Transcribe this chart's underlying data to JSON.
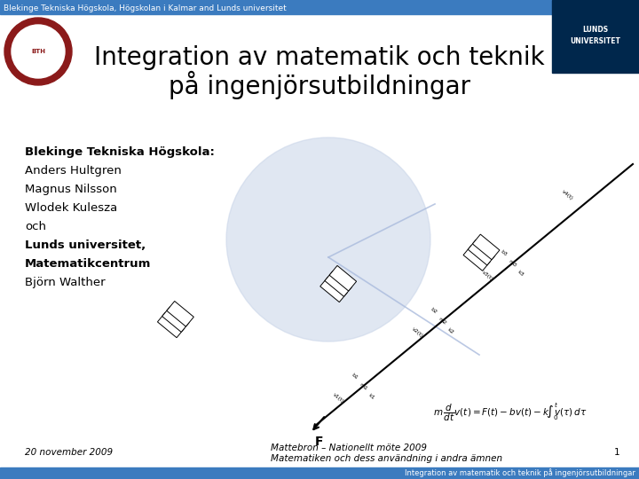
{
  "title_line1": "Integration av matematik och teknik",
  "title_line2": "på ingenjörsutbildningar",
  "header_text": "Blekinge Tekniska Högskola, Högskolan i Kalmar and Lunds universitet",
  "footer_text": "Integration av matematik och teknik på ingenjörsutbildningar",
  "header_bg": "#3b7bbf",
  "footer_bg": "#3b7bbf",
  "slide_bg": "#ffffff",
  "main_text_lines": [
    {
      "text": "Blekinge Tekniska Högskola:",
      "bold": true
    },
    {
      "text": "Anders Hultgren",
      "bold": false
    },
    {
      "text": "Magnus Nilsson",
      "bold": false
    },
    {
      "text": "Wlodek Kulesza",
      "bold": false
    },
    {
      "text": "och",
      "bold": false
    },
    {
      "text": "Lunds universitet,",
      "bold": true
    },
    {
      "text": "Matematikcentrum",
      "bold": true
    },
    {
      "text": "Björn Walther",
      "bold": false
    }
  ],
  "date_text": "20 november 2009",
  "conference_line1": "Mattebron – Nationellt möte 2009",
  "conference_line2": "Matematiken och dess användning i andra ämnen",
  "page_number": "1",
  "title_fontsize": 20,
  "header_fontsize": 6.5,
  "footer_fontsize": 6,
  "body_fontsize": 9.5,
  "date_fontsize": 7.5,
  "lunds_bg": "#00274c",
  "bth_ring_outer": "#8b1a1a",
  "bth_ring_inner": "#ffffff",
  "circle_bg": "#c8d4e8"
}
